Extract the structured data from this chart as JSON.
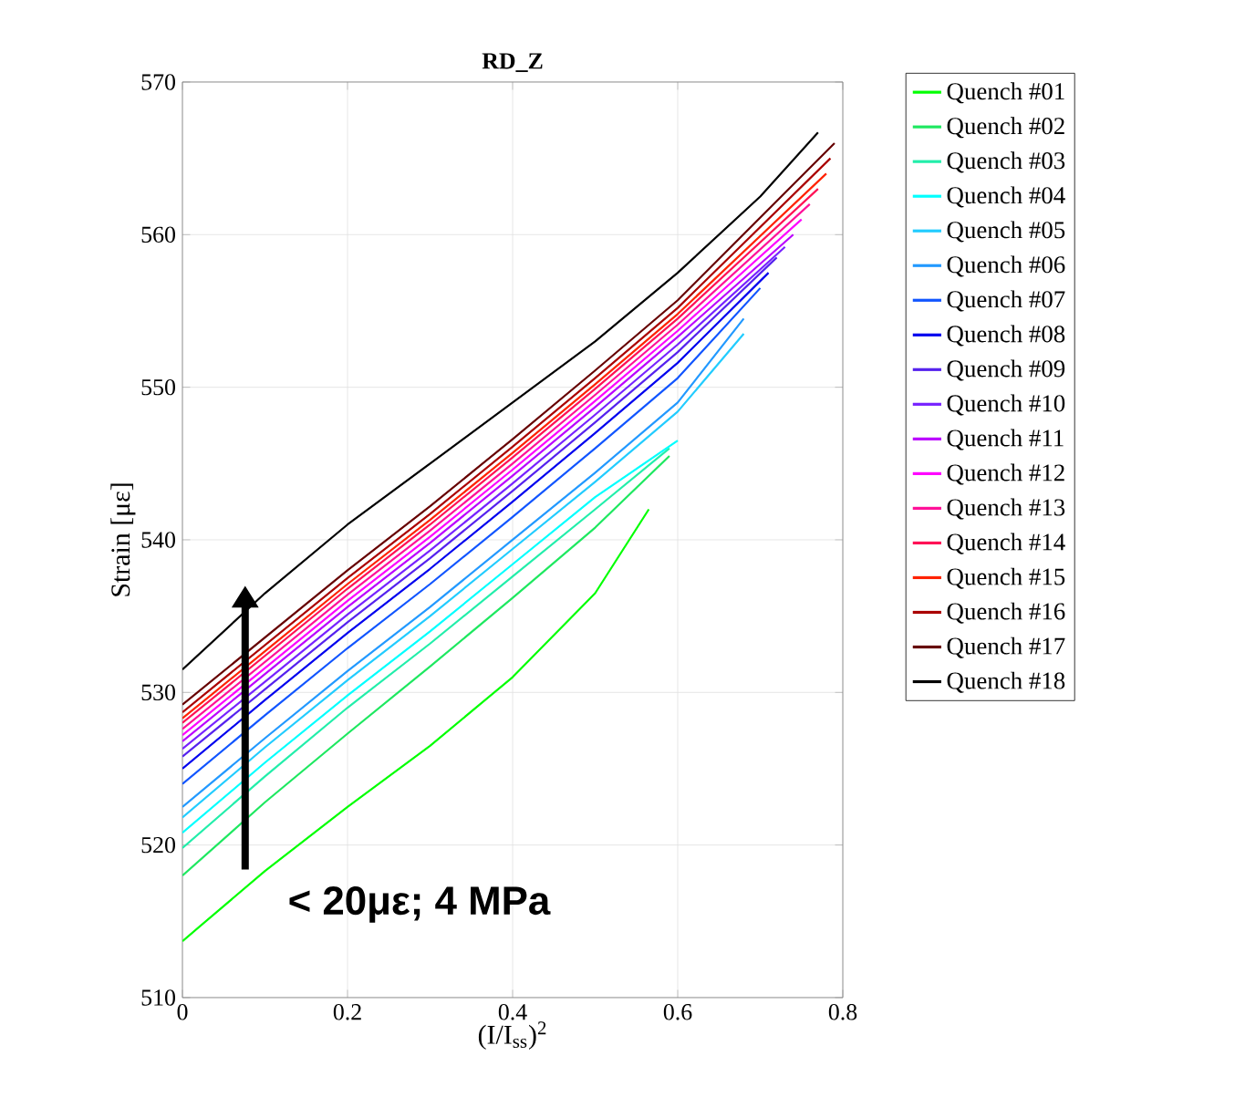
{
  "chart_data": {
    "type": "line",
    "title": "RD_Z",
    "xlabel": "(I/I$_{ss}$)$^{2}$",
    "ylabel": "Strain [με]",
    "xlim": [
      0,
      0.8
    ],
    "xticks": [
      0,
      0.2,
      0.4,
      0.6,
      0.8
    ],
    "ylim": [
      510,
      570
    ],
    "yticks": [
      510,
      520,
      530,
      540,
      550,
      560,
      570
    ],
    "grid": true,
    "legend": "right",
    "marker": "none",
    "line_style": "solid",
    "annotations": [
      "< 20με; 4 MPa"
    ],
    "series": [
      {
        "name": "Quench #01",
        "color": "#00ff00",
        "x": [
          0,
          0.1,
          0.2,
          0.3,
          0.4,
          0.5,
          0.565
        ],
        "values": [
          513.7,
          518.3,
          522.5,
          526.5,
          531,
          536.5,
          542
        ]
      },
      {
        "name": "Quench #02",
        "color": "#1ee860",
        "x": [
          0,
          0.1,
          0.2,
          0.3,
          0.4,
          0.5,
          0.59
        ],
        "values": [
          518,
          522.8,
          527.3,
          531.7,
          536.2,
          540.8,
          545.5
        ]
      },
      {
        "name": "Quench #03",
        "color": "#22eeaa",
        "x": [
          0,
          0.1,
          0.2,
          0.3,
          0.4,
          0.5,
          0.59
        ],
        "values": [
          519.8,
          524.5,
          529,
          533.2,
          537.6,
          542,
          546
        ]
      },
      {
        "name": "Quench #04",
        "color": "#00ffff",
        "x": [
          0,
          0.1,
          0.2,
          0.3,
          0.4,
          0.5,
          0.6
        ],
        "values": [
          520.8,
          525.4,
          529.8,
          534,
          538.4,
          542.8,
          546.5
        ]
      },
      {
        "name": "Quench #05",
        "color": "#22ccff",
        "x": [
          0,
          0.1,
          0.2,
          0.3,
          0.4,
          0.5,
          0.6,
          0.68
        ],
        "values": [
          521.8,
          526.4,
          530.8,
          535,
          539.4,
          543.8,
          548.4,
          553.5
        ]
      },
      {
        "name": "Quench #06",
        "color": "#2299ff",
        "x": [
          0,
          0.1,
          0.2,
          0.3,
          0.4,
          0.5,
          0.6,
          0.68
        ],
        "values": [
          522.5,
          527,
          531.4,
          535.6,
          540,
          544.4,
          549,
          554.5
        ]
      },
      {
        "name": "Quench #07",
        "color": "#1155ff",
        "x": [
          0,
          0.1,
          0.2,
          0.3,
          0.4,
          0.5,
          0.6,
          0.7
        ],
        "values": [
          524,
          528.5,
          532.9,
          537.1,
          541.5,
          546,
          550.6,
          556.5
        ]
      },
      {
        "name": "Quench #08",
        "color": "#0000ee",
        "x": [
          0,
          0.1,
          0.2,
          0.3,
          0.4,
          0.5,
          0.6,
          0.71
        ],
        "values": [
          525,
          529.5,
          533.9,
          538.1,
          542.5,
          547,
          551.6,
          557.5
        ]
      },
      {
        "name": "Quench #09",
        "color": "#5522ee",
        "x": [
          0,
          0.1,
          0.2,
          0.3,
          0.4,
          0.5,
          0.6,
          0.72
        ],
        "values": [
          525.8,
          530.2,
          534.6,
          538.8,
          543.2,
          547.7,
          552.3,
          558.5
        ]
      },
      {
        "name": "Quench #10",
        "color": "#7722ff",
        "x": [
          0,
          0.1,
          0.2,
          0.3,
          0.4,
          0.5,
          0.6,
          0.73
        ],
        "values": [
          526.3,
          530.7,
          535.1,
          539.3,
          543.7,
          548.2,
          552.8,
          559.2
        ]
      },
      {
        "name": "Quench #11",
        "color": "#bb00ff",
        "x": [
          0,
          0.1,
          0.2,
          0.3,
          0.4,
          0.5,
          0.6,
          0.74
        ],
        "values": [
          526.8,
          531.2,
          535.6,
          539.8,
          544.2,
          548.7,
          553.3,
          560
        ]
      },
      {
        "name": "Quench #12",
        "color": "#ff00ff",
        "x": [
          0,
          0.1,
          0.2,
          0.3,
          0.4,
          0.5,
          0.6,
          0.75
        ],
        "values": [
          527.2,
          531.6,
          536,
          540.2,
          544.6,
          549.1,
          553.7,
          561
        ]
      },
      {
        "name": "Quench #13",
        "color": "#ff1199",
        "x": [
          0,
          0.1,
          0.2,
          0.3,
          0.4,
          0.5,
          0.6,
          0.76
        ],
        "values": [
          527.6,
          532,
          536.4,
          540.6,
          545,
          549.5,
          554.1,
          562
        ]
      },
      {
        "name": "Quench #14",
        "color": "#ff1155",
        "x": [
          0,
          0.1,
          0.2,
          0.3,
          0.4,
          0.5,
          0.6,
          0.77
        ],
        "values": [
          528,
          532.4,
          536.8,
          541,
          545.4,
          549.9,
          554.5,
          563
        ]
      },
      {
        "name": "Quench #15",
        "color": "#ff2200",
        "x": [
          0,
          0.1,
          0.2,
          0.3,
          0.4,
          0.5,
          0.6,
          0.78
        ],
        "values": [
          528.3,
          532.7,
          537.1,
          541.3,
          545.7,
          550.2,
          554.8,
          564
        ]
      },
      {
        "name": "Quench #16",
        "color": "#aa0000",
        "x": [
          0,
          0.1,
          0.2,
          0.3,
          0.4,
          0.5,
          0.6,
          0.785
        ],
        "values": [
          528.7,
          533.1,
          537.5,
          541.7,
          546.1,
          550.6,
          555.2,
          565
        ]
      },
      {
        "name": "Quench #17",
        "color": "#660000",
        "x": [
          0,
          0.1,
          0.2,
          0.3,
          0.4,
          0.5,
          0.6,
          0.79
        ],
        "values": [
          529.2,
          533.6,
          538,
          542.2,
          546.6,
          551.1,
          555.7,
          566
        ]
      },
      {
        "name": "Quench #18",
        "color": "#000000",
        "x": [
          0,
          0.1,
          0.2,
          0.3,
          0.4,
          0.5,
          0.6,
          0.7,
          0.77
        ],
        "values": [
          531.5,
          536.5,
          541,
          545,
          549,
          553,
          557.5,
          562.5,
          566.7
        ]
      }
    ]
  }
}
